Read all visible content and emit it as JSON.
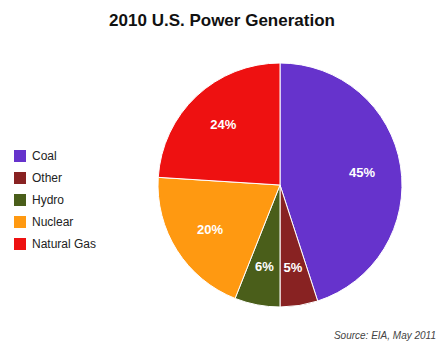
{
  "chart_data": {
    "type": "pie",
    "title": "2010 U.S. Power Generation",
    "categories": [
      "Coal",
      "Other",
      "Hydro",
      "Nuclear",
      "Natural Gas"
    ],
    "values": [
      45,
      5,
      6,
      20,
      24
    ],
    "value_labels": [
      "45%",
      "5%",
      "6%",
      "20%",
      "24%"
    ],
    "colors": [
      "#6633CC",
      "#882222",
      "#4A5E1A",
      "#FF9911",
      "#EE1111"
    ],
    "data_labels": true,
    "legend": "left",
    "annotation": "Source: EIA, May 2011"
  }
}
